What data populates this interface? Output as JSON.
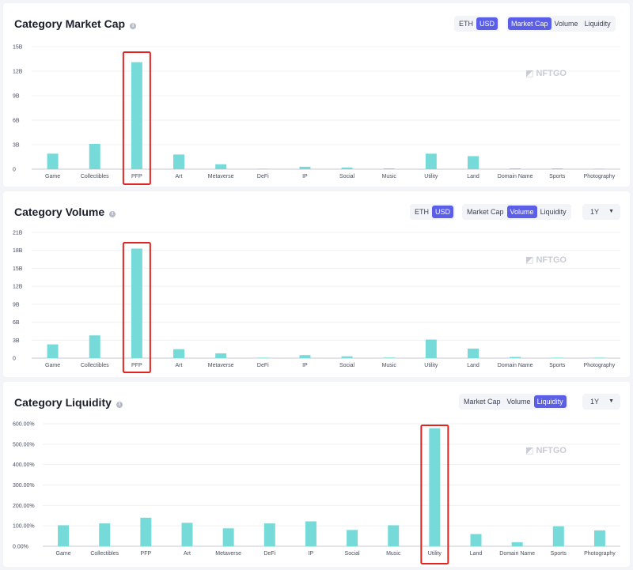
{
  "panels": [
    {
      "title": "Category Market Cap",
      "currency_toggle": [
        "ETH",
        "USD"
      ],
      "currency_selected": 1,
      "metric_toggle": [
        "Market Cap",
        "Volume",
        "Liquidity"
      ],
      "metric_selected": 0,
      "period": null
    },
    {
      "title": "Category Volume",
      "currency_toggle": [
        "ETH",
        "USD"
      ],
      "currency_selected": 1,
      "metric_toggle": [
        "Market Cap",
        "Volume",
        "Liquidity"
      ],
      "metric_selected": 1,
      "period": "1Y"
    },
    {
      "title": "Category Liquidity",
      "currency_toggle": null,
      "currency_selected": null,
      "metric_toggle": [
        "Market Cap",
        "Volume",
        "Liquidity"
      ],
      "metric_selected": 2,
      "period": "1Y"
    }
  ],
  "watermark": "NFTGO",
  "chart_data": [
    {
      "type": "bar",
      "title": "Category Market Cap",
      "categories": [
        "Game",
        "Collectibles",
        "PFP",
        "Art",
        "Metaverse",
        "DeFi",
        "IP",
        "Social",
        "Music",
        "Utility",
        "Land",
        "Domain Name",
        "Sports",
        "Photography"
      ],
      "values": [
        1.9,
        3.1,
        13.1,
        1.8,
        0.6,
        0.02,
        0.3,
        0.2,
        0.1,
        1.9,
        1.6,
        0.1,
        0.1,
        0.02
      ],
      "yticks": [
        "0",
        "3B",
        "6B",
        "9B",
        "12B",
        "15B"
      ],
      "ylim": [
        0,
        15
      ],
      "highlight": "PFP",
      "bar_color": "#76dbd8",
      "highlight_color": "#e3231f"
    },
    {
      "type": "bar",
      "title": "Category Volume",
      "categories": [
        "Game",
        "Collectibles",
        "PFP",
        "Art",
        "Metaverse",
        "DeFi",
        "IP",
        "Social",
        "Music",
        "Utility",
        "Land",
        "Domain Name",
        "Sports",
        "Photography"
      ],
      "values": [
        2.3,
        3.8,
        18.3,
        1.5,
        0.8,
        0.02,
        0.5,
        0.3,
        0.1,
        3.1,
        1.6,
        0.2,
        0.05,
        0.02
      ],
      "yticks": [
        "0",
        "3B",
        "6B",
        "9B",
        "12B",
        "15B",
        "18B",
        "21B"
      ],
      "ylim": [
        0,
        21
      ],
      "highlight": "PFP",
      "bar_color": "#76dbd8",
      "highlight_color": "#e3231f"
    },
    {
      "type": "bar",
      "title": "Category Liquidity",
      "categories": [
        "Game",
        "Collectibles",
        "PFP",
        "Art",
        "Metaverse",
        "DeFi",
        "IP",
        "Social",
        "Music",
        "Utility",
        "Land",
        "Domain Name",
        "Sports",
        "Photography"
      ],
      "values": [
        103,
        112,
        140,
        115,
        88,
        112,
        122,
        80,
        103,
        578,
        60,
        20,
        98,
        78
      ],
      "yticks": [
        "0.00%",
        "100.00%",
        "200.00%",
        "300.00%",
        "400.00%",
        "500.00%",
        "600.00%"
      ],
      "ylim": [
        0,
        600
      ],
      "highlight": "Utility",
      "bar_color": "#76dbd8",
      "highlight_color": "#e3231f"
    }
  ]
}
